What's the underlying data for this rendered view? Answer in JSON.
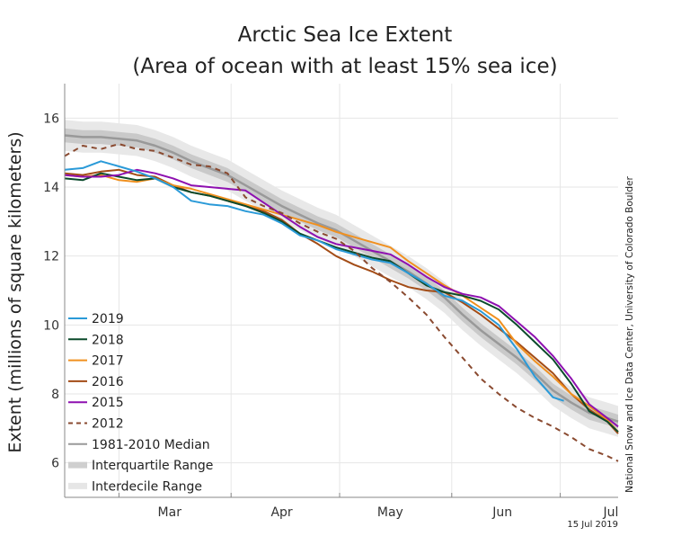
{
  "chart_data": {
    "type": "line",
    "title": "Arctic Sea Ice Extent",
    "subtitle": "(Area of ocean with at least 15% sea ice)",
    "ylabel": "Extent (millions of square kilometers)",
    "xlabel": "",
    "ylim": [
      5,
      17
    ],
    "yticks": [
      6,
      8,
      10,
      12,
      14,
      16
    ],
    "xlim": [
      45,
      198
    ],
    "month_labels": [
      {
        "label": "Mar",
        "x": 74
      },
      {
        "label": "Apr",
        "x": 105
      },
      {
        "label": "May",
        "x": 135
      },
      {
        "label": "Jun",
        "x": 166
      },
      {
        "label": "Jul",
        "x": 196
      }
    ],
    "month_boundaries": [
      60,
      91,
      121,
      152,
      182
    ],
    "grid": true,
    "legend_position": "left-bottom",
    "date_stamp": "15 Jul 2019",
    "credit": "National Snow and Ice Data Center, University of Colorado Boulder",
    "series": [
      {
        "name": "2019",
        "color": "#2a9ad8",
        "dash": "",
        "points": [
          [
            45,
            14.5
          ],
          [
            50,
            14.55
          ],
          [
            55,
            14.75
          ],
          [
            60,
            14.6
          ],
          [
            65,
            14.45
          ],
          [
            70,
            14.25
          ],
          [
            75,
            14.0
          ],
          [
            80,
            13.6
          ],
          [
            85,
            13.5
          ],
          [
            90,
            13.45
          ],
          [
            95,
            13.3
          ],
          [
            100,
            13.2
          ],
          [
            105,
            12.95
          ],
          [
            110,
            12.6
          ],
          [
            115,
            12.45
          ],
          [
            120,
            12.2
          ],
          [
            125,
            12.05
          ],
          [
            130,
            11.9
          ],
          [
            135,
            11.8
          ],
          [
            140,
            11.5
          ],
          [
            145,
            11.2
          ],
          [
            150,
            10.85
          ],
          [
            155,
            10.7
          ],
          [
            160,
            10.4
          ],
          [
            165,
            10.0
          ],
          [
            170,
            9.3
          ],
          [
            175,
            8.5
          ],
          [
            180,
            7.9
          ],
          [
            183,
            7.8
          ]
        ]
      },
      {
        "name": "2018",
        "color": "#0b4a2b",
        "dash": "",
        "points": [
          [
            45,
            14.25
          ],
          [
            50,
            14.2
          ],
          [
            55,
            14.4
          ],
          [
            60,
            14.3
          ],
          [
            65,
            14.2
          ],
          [
            70,
            14.25
          ],
          [
            75,
            14.0
          ],
          [
            80,
            13.85
          ],
          [
            85,
            13.75
          ],
          [
            90,
            13.6
          ],
          [
            95,
            13.45
          ],
          [
            100,
            13.25
          ],
          [
            105,
            13.0
          ],
          [
            110,
            12.65
          ],
          [
            115,
            12.45
          ],
          [
            120,
            12.25
          ],
          [
            125,
            12.1
          ],
          [
            130,
            11.95
          ],
          [
            135,
            11.85
          ],
          [
            140,
            11.5
          ],
          [
            145,
            11.15
          ],
          [
            150,
            10.95
          ],
          [
            155,
            10.85
          ],
          [
            160,
            10.7
          ],
          [
            165,
            10.45
          ],
          [
            170,
            10.0
          ],
          [
            175,
            9.5
          ],
          [
            180,
            9.0
          ],
          [
            185,
            8.3
          ],
          [
            190,
            7.5
          ],
          [
            195,
            7.2
          ],
          [
            198,
            6.9
          ]
        ]
      },
      {
        "name": "2017",
        "color": "#f0901f",
        "dash": "",
        "points": [
          [
            45,
            14.35
          ],
          [
            50,
            14.3
          ],
          [
            55,
            14.35
          ],
          [
            60,
            14.2
          ],
          [
            65,
            14.15
          ],
          [
            70,
            14.25
          ],
          [
            75,
            14.05
          ],
          [
            80,
            13.95
          ],
          [
            85,
            13.8
          ],
          [
            90,
            13.65
          ],
          [
            95,
            13.5
          ],
          [
            100,
            13.35
          ],
          [
            105,
            13.2
          ],
          [
            110,
            13.05
          ],
          [
            115,
            12.9
          ],
          [
            120,
            12.7
          ],
          [
            125,
            12.55
          ],
          [
            130,
            12.4
          ],
          [
            135,
            12.25
          ],
          [
            140,
            11.85
          ],
          [
            145,
            11.5
          ],
          [
            150,
            11.15
          ],
          [
            155,
            10.85
          ],
          [
            160,
            10.5
          ],
          [
            165,
            10.15
          ],
          [
            170,
            9.45
          ],
          [
            175,
            8.95
          ],
          [
            180,
            8.5
          ],
          [
            185,
            8.0
          ],
          [
            190,
            7.65
          ],
          [
            195,
            7.25
          ],
          [
            198,
            6.9
          ]
        ]
      },
      {
        "name": "2016",
        "color": "#a34c16",
        "dash": "",
        "points": [
          [
            45,
            14.4
          ],
          [
            50,
            14.35
          ],
          [
            55,
            14.45
          ],
          [
            60,
            14.5
          ],
          [
            65,
            14.35
          ],
          [
            70,
            14.3
          ],
          [
            75,
            14.05
          ],
          [
            80,
            13.85
          ],
          [
            85,
            13.75
          ],
          [
            90,
            13.6
          ],
          [
            95,
            13.45
          ],
          [
            100,
            13.3
          ],
          [
            105,
            13.05
          ],
          [
            110,
            12.65
          ],
          [
            115,
            12.35
          ],
          [
            120,
            12.0
          ],
          [
            125,
            11.75
          ],
          [
            130,
            11.55
          ],
          [
            135,
            11.3
          ],
          [
            140,
            11.1
          ],
          [
            145,
            11.0
          ],
          [
            150,
            10.95
          ],
          [
            155,
            10.65
          ],
          [
            160,
            10.3
          ],
          [
            165,
            9.9
          ],
          [
            170,
            9.5
          ],
          [
            175,
            9.05
          ],
          [
            180,
            8.6
          ],
          [
            185,
            8.0
          ],
          [
            190,
            7.55
          ],
          [
            195,
            7.2
          ],
          [
            198,
            6.85
          ]
        ]
      },
      {
        "name": "2015",
        "color": "#8e10b0",
        "dash": "",
        "points": [
          [
            45,
            14.35
          ],
          [
            50,
            14.3
          ],
          [
            55,
            14.3
          ],
          [
            60,
            14.35
          ],
          [
            65,
            14.5
          ],
          [
            70,
            14.4
          ],
          [
            75,
            14.25
          ],
          [
            80,
            14.05
          ],
          [
            85,
            14.0
          ],
          [
            90,
            13.95
          ],
          [
            95,
            13.9
          ],
          [
            100,
            13.55
          ],
          [
            105,
            13.2
          ],
          [
            110,
            12.85
          ],
          [
            115,
            12.55
          ],
          [
            120,
            12.35
          ],
          [
            125,
            12.25
          ],
          [
            130,
            12.15
          ],
          [
            135,
            12.05
          ],
          [
            140,
            11.75
          ],
          [
            145,
            11.4
          ],
          [
            150,
            11.1
          ],
          [
            155,
            10.9
          ],
          [
            160,
            10.8
          ],
          [
            165,
            10.55
          ],
          [
            170,
            10.1
          ],
          [
            175,
            9.65
          ],
          [
            180,
            9.1
          ],
          [
            185,
            8.45
          ],
          [
            190,
            7.7
          ],
          [
            195,
            7.3
          ],
          [
            198,
            7.05
          ]
        ]
      },
      {
        "name": "2012",
        "color": "#8a4a30",
        "dash": "6,5",
        "points": [
          [
            45,
            14.9
          ],
          [
            50,
            15.2
          ],
          [
            55,
            15.1
          ],
          [
            60,
            15.25
          ],
          [
            65,
            15.1
          ],
          [
            70,
            15.05
          ],
          [
            75,
            14.85
          ],
          [
            80,
            14.65
          ],
          [
            85,
            14.6
          ],
          [
            90,
            14.4
          ],
          [
            95,
            13.7
          ],
          [
            100,
            13.45
          ],
          [
            105,
            13.25
          ],
          [
            110,
            12.95
          ],
          [
            115,
            12.7
          ],
          [
            120,
            12.5
          ],
          [
            125,
            12.15
          ],
          [
            130,
            11.65
          ],
          [
            135,
            11.25
          ],
          [
            140,
            10.8
          ],
          [
            145,
            10.3
          ],
          [
            150,
            9.65
          ],
          [
            155,
            9.05
          ],
          [
            160,
            8.45
          ],
          [
            165,
            8.0
          ],
          [
            170,
            7.6
          ],
          [
            175,
            7.3
          ],
          [
            180,
            7.05
          ],
          [
            185,
            6.75
          ],
          [
            190,
            6.4
          ],
          [
            195,
            6.2
          ],
          [
            198,
            6.05
          ]
        ]
      },
      {
        "name": "1981-2010 Median",
        "color": "#999999",
        "dash": "",
        "points": [
          [
            45,
            15.5
          ],
          [
            50,
            15.45
          ],
          [
            55,
            15.45
          ],
          [
            60,
            15.4
          ],
          [
            65,
            15.35
          ],
          [
            70,
            15.2
          ],
          [
            75,
            15.0
          ],
          [
            80,
            14.75
          ],
          [
            85,
            14.55
          ],
          [
            90,
            14.35
          ],
          [
            95,
            14.05
          ],
          [
            100,
            13.75
          ],
          [
            105,
            13.45
          ],
          [
            110,
            13.2
          ],
          [
            115,
            12.95
          ],
          [
            120,
            12.75
          ],
          [
            125,
            12.45
          ],
          [
            130,
            12.15
          ],
          [
            135,
            11.85
          ],
          [
            140,
            11.55
          ],
          [
            145,
            11.2
          ],
          [
            150,
            10.8
          ],
          [
            155,
            10.3
          ],
          [
            160,
            9.85
          ],
          [
            165,
            9.45
          ],
          [
            170,
            9.05
          ],
          [
            175,
            8.6
          ],
          [
            180,
            8.1
          ],
          [
            185,
            7.75
          ],
          [
            190,
            7.45
          ],
          [
            195,
            7.3
          ],
          [
            198,
            7.2
          ]
        ]
      }
    ],
    "bands": [
      {
        "name": "Interquartile Range",
        "color": "#c9c9c9",
        "half_width": 0.2
      },
      {
        "name": "Interdecile Range",
        "color": "#e8e8e8",
        "half_width": 0.45
      }
    ]
  }
}
